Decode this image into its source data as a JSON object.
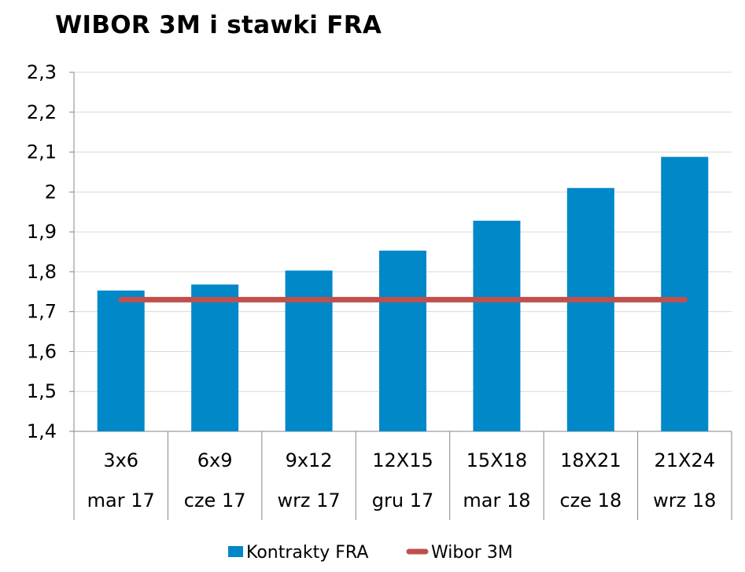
{
  "chart_data": {
    "type": "bar",
    "title": "WIBOR 3M i stawki FRA",
    "xlabel": "",
    "ylabel": "",
    "ylim": [
      1.4,
      2.3
    ],
    "yticks": [
      "1,4",
      "1,5",
      "1,6",
      "1,7",
      "1,8",
      "1,9",
      "2",
      "2,1",
      "2,2",
      "2,3"
    ],
    "categories": [
      "3x6",
      "6x9",
      "9x12",
      "12X15",
      "15X18",
      "18X21",
      "21X24"
    ],
    "categories_secondary": [
      "mar 17",
      "cze 17",
      "wrz 17",
      "gru 17",
      "mar 18",
      "cze 18",
      "wrz 18"
    ],
    "grid": true,
    "legend_position": "bottom",
    "series": [
      {
        "name": "Kontrakty FRA",
        "type": "bar",
        "color": "#0088C9",
        "values": [
          1.753,
          1.768,
          1.803,
          1.853,
          1.928,
          2.01,
          2.088
        ]
      },
      {
        "name": "Wibor 3M",
        "type": "line",
        "color": "#C0504D",
        "values": [
          1.73,
          1.73,
          1.73,
          1.73,
          1.73,
          1.73,
          1.73
        ]
      }
    ]
  }
}
